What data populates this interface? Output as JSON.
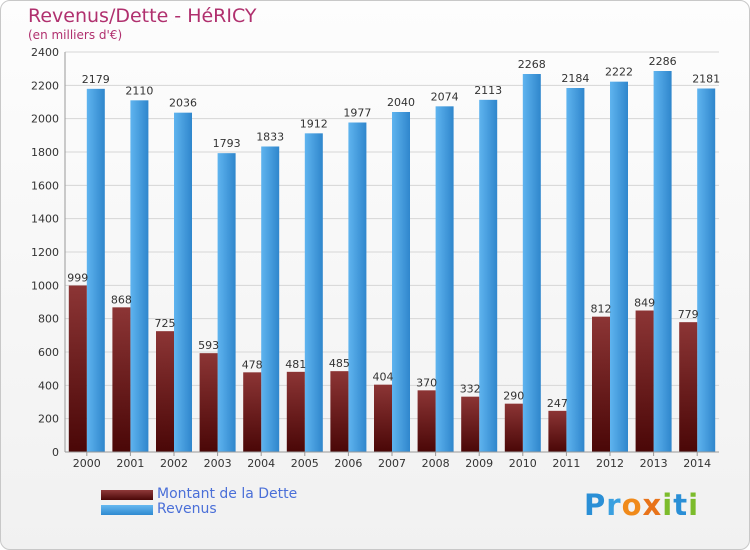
{
  "chart_data": {
    "type": "bar",
    "title": "Revenus/Dette - HéRICY",
    "subtitle": "(en milliers d'€)",
    "categories": [
      "2000",
      "2001",
      "2002",
      "2003",
      "2004",
      "2005",
      "2006",
      "2007",
      "2008",
      "2009",
      "2010",
      "2011",
      "2012",
      "2013",
      "2014"
    ],
    "series": [
      {
        "name": "Montant de la Dette",
        "values": [
          999,
          868,
          725,
          593,
          478,
          481,
          485,
          404,
          370,
          332,
          290,
          247,
          812,
          849,
          779
        ],
        "color": "#6e1a1a"
      },
      {
        "name": "Revenus",
        "values": [
          2179,
          2110,
          2036,
          1793,
          1833,
          1912,
          1977,
          2040,
          2074,
          2113,
          2268,
          2184,
          2222,
          2286,
          2181
        ],
        "color": "#4ca3e6"
      }
    ],
    "ylim": [
      0,
      2400
    ],
    "yticks": [
      0,
      200,
      400,
      600,
      800,
      1000,
      1200,
      1400,
      1600,
      1800,
      2000,
      2200,
      2400
    ],
    "grid": true,
    "legend": "bottom-left"
  },
  "logo": {
    "text": "Proxiti",
    "letters": [
      "P",
      "r",
      "o",
      "x",
      "i",
      "t",
      "i"
    ],
    "colors": [
      "#2a8fd6",
      "#3aa0e0",
      "#f08a1a",
      "#e8731a",
      "#7cbc2c",
      "#2a8fd6",
      "#7cbc2c"
    ]
  }
}
